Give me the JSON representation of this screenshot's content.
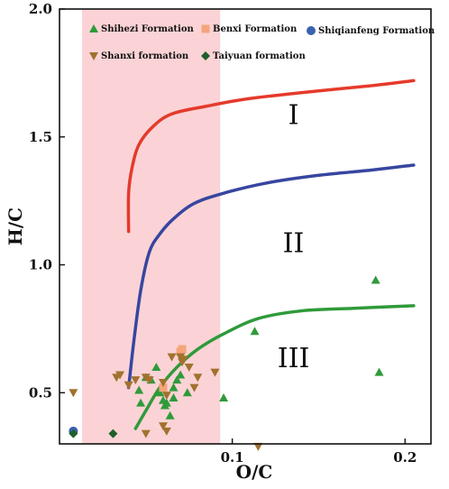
{
  "chart_data": {
    "type": "scatter",
    "xlabel": "O/C",
    "ylabel": "H/C",
    "xlim": [
      0.0,
      0.215
    ],
    "ylim": [
      0.3,
      2.0
    ],
    "x_ticks": [
      {
        "value": 0.1,
        "label": "0.1"
      },
      {
        "value": 0.2,
        "label": "0.2"
      }
    ],
    "y_ticks": [
      {
        "value": 0.5,
        "label": "0.5"
      },
      {
        "value": 1.0,
        "label": "1.0"
      },
      {
        "value": 1.5,
        "label": "1.5"
      },
      {
        "value": 2.0,
        "label": "2.0"
      }
    ],
    "shaded_band": {
      "x0": 0.013,
      "x1": 0.093,
      "color": "#fbd3d6"
    },
    "region_labels": [
      {
        "text": "I",
        "x": 0.125,
        "y": 1.55
      },
      {
        "text": "II",
        "x": 0.125,
        "y": 1.05
      },
      {
        "text": "III",
        "x": 0.125,
        "y": 0.6
      }
    ],
    "curves": [
      {
        "color": "#e53a2b",
        "points": [
          [
            0.04,
            1.13
          ],
          [
            0.04,
            1.28
          ],
          [
            0.042,
            1.38
          ],
          [
            0.046,
            1.47
          ],
          [
            0.054,
            1.54
          ],
          [
            0.065,
            1.59
          ],
          [
            0.085,
            1.62
          ],
          [
            0.11,
            1.65
          ],
          [
            0.15,
            1.68
          ],
          [
            0.18,
            1.7
          ],
          [
            0.205,
            1.72
          ]
        ]
      },
      {
        "color": "#3746a0",
        "points": [
          [
            0.04,
            0.52
          ],
          [
            0.043,
            0.7
          ],
          [
            0.047,
            0.9
          ],
          [
            0.052,
            1.05
          ],
          [
            0.058,
            1.12
          ],
          [
            0.066,
            1.18
          ],
          [
            0.078,
            1.24
          ],
          [
            0.095,
            1.28
          ],
          [
            0.12,
            1.32
          ],
          [
            0.15,
            1.35
          ],
          [
            0.18,
            1.37
          ],
          [
            0.205,
            1.39
          ]
        ]
      },
      {
        "color": "#2f9a3a",
        "points": [
          [
            0.044,
            0.36
          ],
          [
            0.05,
            0.43
          ],
          [
            0.058,
            0.52
          ],
          [
            0.068,
            0.6
          ],
          [
            0.08,
            0.67
          ],
          [
            0.095,
            0.73
          ],
          [
            0.115,
            0.79
          ],
          [
            0.14,
            0.82
          ],
          [
            0.17,
            0.83
          ],
          [
            0.205,
            0.84
          ]
        ]
      }
    ],
    "series": [
      {
        "name": "Shihezi Formation",
        "marker": "triangle-up",
        "color": "#2f9a3a",
        "points": [
          [
            0.046,
            0.51
          ],
          [
            0.047,
            0.46
          ],
          [
            0.05,
            0.56
          ],
          [
            0.053,
            0.55
          ],
          [
            0.056,
            0.6
          ],
          [
            0.058,
            0.5
          ],
          [
            0.06,
            0.47
          ],
          [
            0.061,
            0.45
          ],
          [
            0.062,
            0.46
          ],
          [
            0.064,
            0.41
          ],
          [
            0.066,
            0.48
          ],
          [
            0.066,
            0.52
          ],
          [
            0.068,
            0.55
          ],
          [
            0.07,
            0.57
          ],
          [
            0.074,
            0.5
          ],
          [
            0.095,
            0.48
          ],
          [
            0.113,
            0.74
          ],
          [
            0.183,
            0.94
          ],
          [
            0.185,
            0.58
          ]
        ]
      },
      {
        "name": "Benxi Formation",
        "marker": "square",
        "color": "#f4a57a",
        "points": [
          [
            0.07,
            0.66
          ],
          [
            0.071,
            0.67
          ],
          [
            0.06,
            0.52
          ]
        ]
      },
      {
        "name": "Shiqianfeng Formation",
        "marker": "circle",
        "color": "#3a63b0",
        "points": [
          [
            0.008,
            0.35
          ]
        ]
      },
      {
        "name": "Shanxi formation",
        "marker": "triangle-down",
        "color": "#a0722e",
        "points": [
          [
            0.008,
            0.5
          ],
          [
            0.033,
            0.56
          ],
          [
            0.035,
            0.57
          ],
          [
            0.04,
            0.53
          ],
          [
            0.044,
            0.55
          ],
          [
            0.05,
            0.56
          ],
          [
            0.052,
            0.55
          ],
          [
            0.06,
            0.54
          ],
          [
            0.062,
            0.49
          ],
          [
            0.065,
            0.64
          ],
          [
            0.07,
            0.64
          ],
          [
            0.071,
            0.62
          ],
          [
            0.072,
            0.63
          ],
          [
            0.075,
            0.6
          ],
          [
            0.078,
            0.52
          ],
          [
            0.08,
            0.56
          ],
          [
            0.09,
            0.58
          ],
          [
            0.06,
            0.37
          ],
          [
            0.062,
            0.35
          ],
          [
            0.05,
            0.34
          ],
          [
            0.115,
            0.29
          ]
        ]
      },
      {
        "name": "Taiyuan formation",
        "marker": "diamond",
        "color": "#1f5f2a",
        "points": [
          [
            0.008,
            0.34
          ],
          [
            0.031,
            0.34
          ]
        ]
      }
    ],
    "legend": {
      "placement": "top",
      "entries": [
        {
          "name": "Shihezi Formation",
          "marker": "triangle-up",
          "color": "#2f9a3a"
        },
        {
          "name": "Benxi Formation",
          "marker": "square",
          "color": "#f4a57a"
        },
        {
          "name": "Shiqianfeng Formation",
          "marker": "circle",
          "color": "#3a63b0"
        },
        {
          "name": "Shanxi formation",
          "marker": "triangle-down",
          "color": "#a0722e"
        },
        {
          "name": "Taiyuan formation",
          "marker": "diamond",
          "color": "#1f5f2a"
        }
      ]
    },
    "grid": false
  }
}
